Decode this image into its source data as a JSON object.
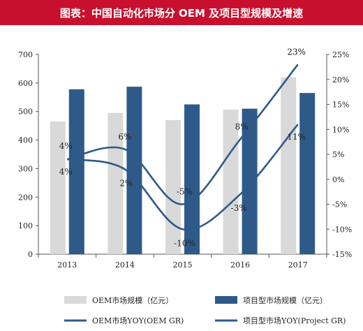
{
  "banner": {
    "title": "图表：中国自动化市场分 OEM 及项目型规模及增速"
  },
  "chart_data": {
    "type": "bar",
    "title": "图表：中国自动化市场分 OEM 及项目型规模及增速",
    "categories": [
      "2013",
      "2014",
      "2015",
      "2016",
      "2017"
    ],
    "ylim": [
      0,
      700
    ],
    "y_ticks": [
      "0",
      "100",
      "200",
      "300",
      "400",
      "500",
      "600",
      "700"
    ],
    "y2lim": [
      -15,
      25
    ],
    "y2_ticks": [
      "-15%",
      "-10%",
      "-5%",
      "0%",
      "5%",
      "10%",
      "15%",
      "20%",
      "25%"
    ],
    "grid": false,
    "legend_position": "bottom",
    "series": [
      {
        "name": "OEM市场规模（亿元）",
        "kind": "bar",
        "axis": "left",
        "color": "#d9d9d9",
        "values": [
          465,
          495,
          470,
          507,
          620
        ]
      },
      {
        "name": "项目型市场规模（亿元）",
        "kind": "bar",
        "axis": "left",
        "color": "#2e5a8a",
        "values": [
          578,
          587,
          525,
          510,
          565
        ]
      },
      {
        "name": "OEM市场YOY(OEM GR)",
        "kind": "line",
        "axis": "right",
        "color": "#2e5a8a",
        "values": [
          4,
          6,
          -5,
          8,
          23
        ],
        "labels": [
          "4%",
          "6%",
          "-5%",
          "8%",
          "23%"
        ]
      },
      {
        "name": "项目型市场YOY(Project GR)",
        "kind": "line",
        "axis": "right",
        "color": "#2e5a8a",
        "values": [
          4,
          2,
          -10,
          -3,
          11
        ],
        "labels": [
          "4%",
          "2%",
          "-10%",
          "-3%",
          "11%"
        ]
      }
    ]
  }
}
